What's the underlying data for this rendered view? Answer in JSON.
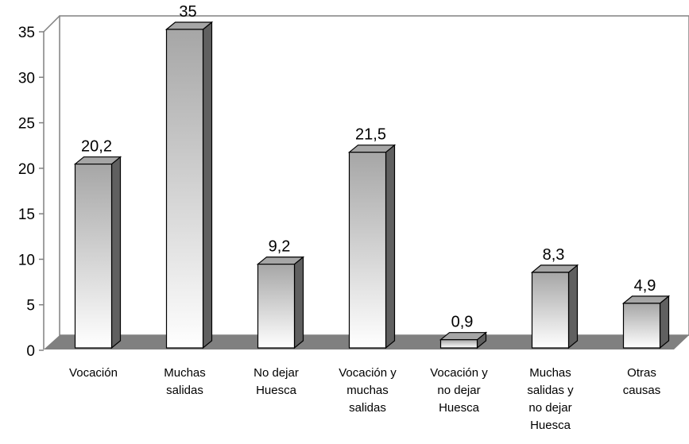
{
  "chart_data": {
    "type": "bar3d",
    "categories": [
      "Vocación",
      "Muchas salidas",
      "No dejar Huesca",
      "Vocación y muchas salidas",
      "Vocación y no dejar Huesca",
      "Muchas salidas y no dejar Huesca",
      "Otras causas"
    ],
    "values": [
      20.2,
      35,
      9.2,
      21.5,
      0.9,
      8.3,
      4.9
    ],
    "value_labels": [
      "20,2",
      "35",
      "9,2",
      "21,5",
      "0,9",
      "8,3",
      "4,9"
    ],
    "ylim": [
      0,
      35
    ],
    "yticks": [
      0,
      5,
      10,
      15,
      20,
      25,
      30,
      35
    ],
    "color": "#a6a6a6"
  }
}
